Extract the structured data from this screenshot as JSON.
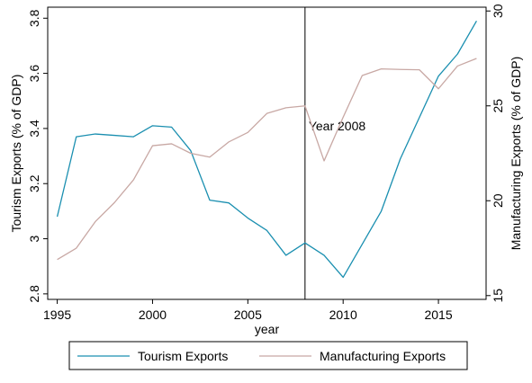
{
  "chart_data": {
    "type": "line",
    "xlabel": "year",
    "x_ticks": [
      1995,
      2000,
      2005,
      2010,
      2015
    ],
    "xlim": [
      1994.5,
      2017.5
    ],
    "y_left": {
      "label": "Tourism Exports (% of GDP)",
      "ticks": [
        2.8,
        3,
        3.2,
        3.4,
        3.6,
        3.8
      ],
      "tick_labels": [
        "2.8",
        "3",
        "3.2",
        "3.4",
        "3.6",
        "3.8"
      ],
      "lim": [
        2.78,
        3.84
      ]
    },
    "y_right": {
      "label": "Manufacturing Exports (% of GDP)",
      "ticks": [
        15,
        20,
        25,
        30
      ],
      "tick_labels": [
        "15",
        "20",
        "25",
        "30"
      ],
      "lim": [
        14.8,
        30.2
      ]
    },
    "x": [
      1995,
      1996,
      1997,
      1998,
      1999,
      2000,
      2001,
      2002,
      2003,
      2004,
      2005,
      2006,
      2007,
      2008,
      2009,
      2010,
      2011,
      2012,
      2013,
      2014,
      2015,
      2016,
      2017
    ],
    "series": [
      {
        "name": "Tourism Exports",
        "axis": "left",
        "color": "#1a8fb0",
        "values": [
          3.08,
          3.37,
          3.38,
          3.375,
          3.37,
          3.41,
          3.405,
          3.32,
          3.14,
          3.13,
          3.075,
          3.03,
          2.94,
          2.985,
          2.94,
          2.86,
          2.98,
          3.1,
          3.29,
          3.44,
          3.59,
          3.67,
          3.79
        ]
      },
      {
        "name": "Manufacturing Exports",
        "axis": "right",
        "color": "#c8a8a4",
        "values": [
          16.9,
          17.5,
          18.9,
          19.9,
          21.1,
          22.9,
          23.0,
          22.5,
          22.3,
          23.1,
          23.6,
          24.6,
          24.9,
          25.0,
          22.1,
          24.4,
          26.6,
          26.95,
          26.92,
          26.9,
          25.9,
          27.1,
          27.5
        ]
      }
    ],
    "vline": {
      "x": 2008,
      "label": "Year 2008"
    },
    "legend_position": "bottom",
    "grid": false
  }
}
